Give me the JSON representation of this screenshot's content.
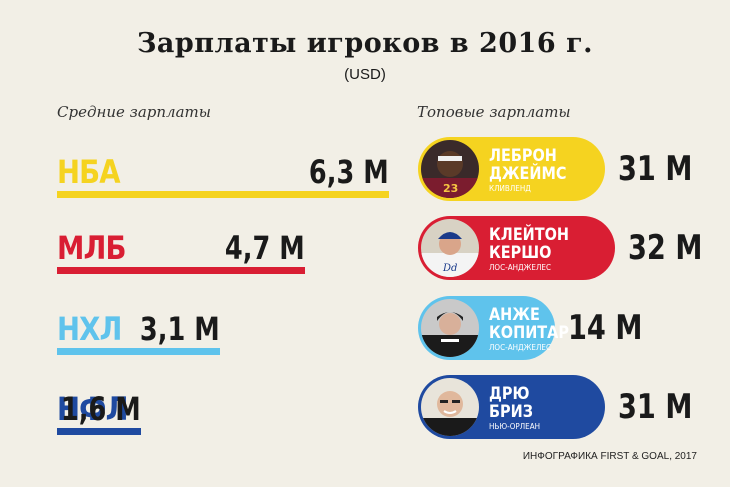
{
  "title": "Зарплаты игроков в 2016 г.",
  "subtitle": "(USD)",
  "left_label": "Средние зарплаты",
  "right_label": "Топовые зарплаты",
  "credit": "ИНФОГРАФИКА FIRST & GOAL, 2017",
  "chart_data": [
    {
      "type": "bar",
      "title": "Средние зарплаты",
      "unit": "М",
      "categories": [
        "НБА",
        "МЛБ",
        "НХЛ",
        "НФЛ"
      ],
      "values": [
        6.3,
        4.7,
        3.1,
        1.6
      ],
      "value_labels": [
        "6,3 М",
        "4,7 М",
        "3,1 М",
        "1,6 М"
      ],
      "colors": [
        "#f5d320",
        "#d91e33",
        "#5fc3ec",
        "#1f4aa0"
      ]
    },
    {
      "type": "table",
      "title": "Топовые зарплаты",
      "rows": [
        {
          "name_line1": "ЛЕБРОН",
          "name_line2": "ДЖЕЙМС",
          "club": "КЛИВЛЕНД",
          "salary": "31 М",
          "value": 31,
          "color": "#f5d320"
        },
        {
          "name_line1": "КЛЕЙТОН",
          "name_line2": "КЕРШО",
          "club": "ЛОС-АНДЖЕЛЕС",
          "salary": "32 М",
          "value": 32,
          "color": "#d91e33"
        },
        {
          "name_line1": "АНЖЕ",
          "name_line2": "КОПИТАР",
          "club": "ЛОС-АНДЖЕЛЕС",
          "salary": "14 М",
          "value": 14,
          "color": "#5fc3ec"
        },
        {
          "name_line1": "ДРЮ",
          "name_line2": "БРИЗ",
          "club": "НЬЮ-ОРЛЕАН",
          "salary": "31 М",
          "value": 31,
          "color": "#1f4aa0"
        }
      ]
    }
  ]
}
